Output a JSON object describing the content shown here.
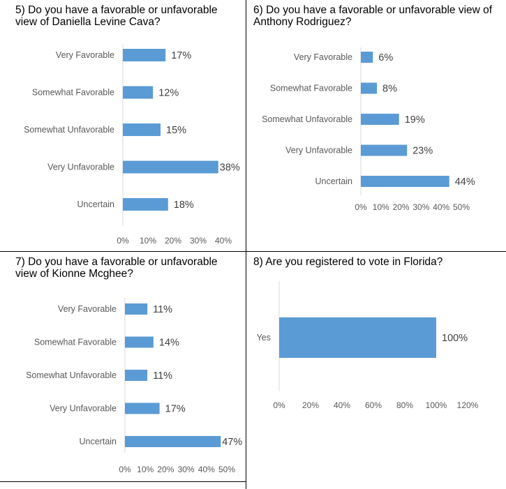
{
  "colors": {
    "bar": "#5b9bd5",
    "axis": "#d9d9d9"
  },
  "chart_data": [
    {
      "type": "bar",
      "orientation": "horizontal",
      "title": "5) Do you have a favorable or unfavorable view of Daniella Levine Cava?",
      "categories": [
        "Very Favorable",
        "Somewhat Favorable",
        "Somewhat Unfavorable",
        "Very Unfavorable",
        "Uncertain"
      ],
      "values": [
        17,
        12,
        15,
        38,
        18
      ],
      "value_labels": [
        "17%",
        "12%",
        "15%",
        "38%",
        "18%"
      ],
      "xlim": [
        0,
        40
      ],
      "ticks": [
        0,
        10,
        20,
        30,
        40
      ],
      "tick_labels": [
        "0%",
        "10%",
        "20%",
        "30%",
        "40%"
      ],
      "grid": false
    },
    {
      "type": "bar",
      "orientation": "horizontal",
      "title": "6) Do you have a favorable or unfavorable view of Anthony Rodriguez?",
      "categories": [
        "Very Favorable",
        "Somewhat Favorable",
        "Somewhat Unfavorable",
        "Very Unfavorable",
        "Uncertain"
      ],
      "values": [
        6,
        8,
        19,
        23,
        44
      ],
      "value_labels": [
        "6%",
        "8%",
        "19%",
        "23%",
        "44%"
      ],
      "xlim": [
        0,
        50
      ],
      "ticks": [
        0,
        10,
        20,
        30,
        40,
        50
      ],
      "tick_labels": [
        "0%",
        "10%",
        "20%",
        "30%",
        "40%",
        "50%"
      ],
      "grid": false
    },
    {
      "type": "bar",
      "orientation": "horizontal",
      "title": "7) Do you have a favorable or unfavorable view of Kionne Mcghee?",
      "categories": [
        "Very Favorable",
        "Somewhat Favorable",
        "Somewhat Unfavorable",
        "Very Unfavorable",
        "Uncertain"
      ],
      "values": [
        11,
        14,
        11,
        17,
        47
      ],
      "value_labels": [
        "11%",
        "14%",
        "11%",
        "17%",
        "47%"
      ],
      "xlim": [
        0,
        50
      ],
      "ticks": [
        0,
        10,
        20,
        30,
        40,
        50
      ],
      "tick_labels": [
        "0%",
        "10%",
        "20%",
        "30%",
        "40%",
        "50%"
      ],
      "grid": false
    },
    {
      "type": "bar",
      "orientation": "horizontal",
      "title": "8) Are you registered to vote in Florida?",
      "categories": [
        "Yes"
      ],
      "values": [
        100
      ],
      "value_labels": [
        "100%"
      ],
      "xlim": [
        0,
        120
      ],
      "ticks": [
        0,
        20,
        40,
        60,
        80,
        100,
        120
      ],
      "tick_labels": [
        "0%",
        "20%",
        "40%",
        "60%",
        "80%",
        "100%",
        "120%"
      ],
      "grid": false
    }
  ]
}
